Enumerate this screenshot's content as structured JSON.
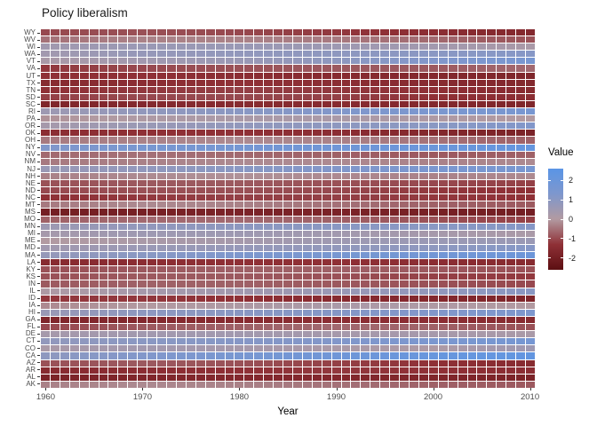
{
  "chart_data": {
    "type": "heatmap",
    "title": "Policy liberalism",
    "xlabel": "Year",
    "legend_title": "Value",
    "x_range": [
      1960,
      2010
    ],
    "x_ticks": [
      1960,
      1970,
      1980,
      1990,
      2000,
      2010
    ],
    "legend_ticks": [
      2,
      1,
      0,
      -1,
      -2
    ],
    "legend_range": [
      -2.6,
      2.6
    ],
    "grid_line_color": "#ffffff",
    "color_scale": {
      "stops": [
        {
          "value": -2.6,
          "color": "#5c0f12"
        },
        {
          "value": -1.3,
          "color": "#8f3036"
        },
        {
          "value": 0,
          "color": "#b29aa1"
        },
        {
          "value": 1.3,
          "color": "#7e97cd"
        },
        {
          "value": 2.6,
          "color": "#5a95e6"
        }
      ]
    },
    "years_sampled": [
      1960,
      1970,
      1980,
      1990,
      2000,
      2010
    ],
    "states": [
      "AK",
      "AL",
      "AR",
      "AZ",
      "CA",
      "CO",
      "CT",
      "DE",
      "FL",
      "GA",
      "HI",
      "IA",
      "ID",
      "IL",
      "IN",
      "KS",
      "KY",
      "LA",
      "MA",
      "MD",
      "ME",
      "MI",
      "MN",
      "MO",
      "MS",
      "MT",
      "NC",
      "ND",
      "NE",
      "NH",
      "NJ",
      "NM",
      "NV",
      "NY",
      "OH",
      "OK",
      "OR",
      "PA",
      "RI",
      "SC",
      "SD",
      "TN",
      "TX",
      "UT",
      "VA",
      "VT",
      "WA",
      "WI",
      "WV",
      "WY"
    ],
    "series": [
      {
        "name": "AK",
        "values": [
          -0.3,
          -0.2,
          -0.3,
          -0.5,
          -0.7,
          -0.8
        ]
      },
      {
        "name": "AL",
        "values": [
          -1.8,
          -1.7,
          -1.6,
          -1.6,
          -1.7,
          -1.8
        ]
      },
      {
        "name": "AR",
        "values": [
          -1.5,
          -1.4,
          -1.3,
          -1.2,
          -1.3,
          -1.4
        ]
      },
      {
        "name": "AZ",
        "values": [
          -0.9,
          -0.8,
          -0.9,
          -1.1,
          -1.3,
          -1.5
        ]
      },
      {
        "name": "CA",
        "values": [
          0.9,
          1.2,
          1.5,
          1.8,
          2.1,
          2.3
        ]
      },
      {
        "name": "CO",
        "values": [
          0.2,
          0.4,
          0.3,
          0.2,
          0.1,
          0.5
        ]
      },
      {
        "name": "CT",
        "values": [
          0.8,
          1.0,
          1.1,
          1.2,
          1.4,
          1.6
        ]
      },
      {
        "name": "DE",
        "values": [
          0.3,
          0.4,
          0.4,
          0.3,
          0.3,
          0.2
        ]
      },
      {
        "name": "FL",
        "values": [
          -1.0,
          -0.8,
          -0.7,
          -0.6,
          -0.7,
          -0.9
        ]
      },
      {
        "name": "GA",
        "values": [
          -1.7,
          -1.6,
          -1.5,
          -1.4,
          -1.4,
          -1.5
        ]
      },
      {
        "name": "HI",
        "values": [
          0.6,
          0.9,
          1.0,
          1.1,
          1.2,
          1.3
        ]
      },
      {
        "name": "IA",
        "values": [
          -0.2,
          0.0,
          0.1,
          0.2,
          0.1,
          0.0
        ]
      },
      {
        "name": "ID",
        "values": [
          -1.2,
          -1.2,
          -1.3,
          -1.5,
          -1.6,
          -1.7
        ]
      },
      {
        "name": "IL",
        "values": [
          0.1,
          0.3,
          0.4,
          0.6,
          0.8,
          1.0
        ]
      },
      {
        "name": "IN",
        "values": [
          -0.8,
          -0.7,
          -0.7,
          -0.8,
          -0.9,
          -1.0
        ]
      },
      {
        "name": "KS",
        "values": [
          -0.9,
          -0.8,
          -0.8,
          -0.9,
          -1.1,
          -1.2
        ]
      },
      {
        "name": "KY",
        "values": [
          -0.9,
          -0.8,
          -0.7,
          -0.7,
          -0.8,
          -0.9
        ]
      },
      {
        "name": "LA",
        "values": [
          -1.5,
          -1.4,
          -1.3,
          -1.3,
          -1.4,
          -1.5
        ]
      },
      {
        "name": "MA",
        "values": [
          0.7,
          1.0,
          1.3,
          1.5,
          1.7,
          1.9
        ]
      },
      {
        "name": "MD",
        "values": [
          0.4,
          0.6,
          0.7,
          0.8,
          0.9,
          1.1
        ]
      },
      {
        "name": "ME",
        "values": [
          0.0,
          0.2,
          0.3,
          0.5,
          0.6,
          0.6
        ]
      },
      {
        "name": "MI",
        "values": [
          0.3,
          0.5,
          0.5,
          0.4,
          0.3,
          0.2
        ]
      },
      {
        "name": "MN",
        "values": [
          0.5,
          0.8,
          0.9,
          1.0,
          1.0,
          1.1
        ]
      },
      {
        "name": "MO",
        "values": [
          -0.7,
          -0.6,
          -0.6,
          -0.7,
          -0.9,
          -1.1
        ]
      },
      {
        "name": "MS",
        "values": [
          -2.0,
          -1.9,
          -1.8,
          -1.8,
          -1.9,
          -2.0
        ]
      },
      {
        "name": "MT",
        "values": [
          -0.4,
          -0.2,
          -0.3,
          -0.5,
          -0.7,
          -0.8
        ]
      },
      {
        "name": "NC",
        "values": [
          -1.3,
          -1.2,
          -1.1,
          -1.1,
          -1.2,
          -1.3
        ]
      },
      {
        "name": "ND",
        "values": [
          -1.0,
          -0.9,
          -0.9,
          -1.0,
          -1.2,
          -1.3
        ]
      },
      {
        "name": "NE",
        "values": [
          -0.9,
          -0.8,
          -0.8,
          -0.9,
          -1.0,
          -1.1
        ]
      },
      {
        "name": "NH",
        "values": [
          -0.3,
          -0.2,
          -0.1,
          -0.2,
          -0.3,
          -0.2
        ]
      },
      {
        "name": "NJ",
        "values": [
          0.6,
          0.8,
          1.0,
          1.2,
          1.4,
          1.5
        ]
      },
      {
        "name": "NM",
        "values": [
          -0.4,
          -0.3,
          -0.2,
          -0.2,
          -0.3,
          -0.2
        ]
      },
      {
        "name": "NV",
        "values": [
          -0.6,
          -0.5,
          -0.6,
          -0.7,
          -0.8,
          -0.7
        ]
      },
      {
        "name": "NY",
        "values": [
          1.2,
          1.5,
          1.6,
          1.8,
          2.0,
          2.2
        ]
      },
      {
        "name": "OH",
        "values": [
          -0.4,
          -0.3,
          -0.2,
          -0.3,
          -0.5,
          -0.7
        ]
      },
      {
        "name": "OK",
        "values": [
          -1.4,
          -1.3,
          -1.3,
          -1.4,
          -1.6,
          -1.8
        ]
      },
      {
        "name": "OR",
        "values": [
          0.3,
          0.6,
          0.8,
          0.9,
          1.0,
          1.2
        ]
      },
      {
        "name": "PA",
        "values": [
          -0.1,
          0.1,
          0.2,
          0.2,
          0.1,
          0.0
        ]
      },
      {
        "name": "RI",
        "values": [
          0.5,
          0.8,
          1.0,
          1.2,
          1.4,
          1.5
        ]
      },
      {
        "name": "SC",
        "values": [
          -1.7,
          -1.6,
          -1.5,
          -1.5,
          -1.6,
          -1.7
        ]
      },
      {
        "name": "SD",
        "values": [
          -1.1,
          -1.0,
          -1.0,
          -1.1,
          -1.3,
          -1.4
        ]
      },
      {
        "name": "TN",
        "values": [
          -1.3,
          -1.2,
          -1.1,
          -1.2,
          -1.3,
          -1.5
        ]
      },
      {
        "name": "TX",
        "values": [
          -1.5,
          -1.4,
          -1.3,
          -1.4,
          -1.5,
          -1.6
        ]
      },
      {
        "name": "UT",
        "values": [
          -1.3,
          -1.3,
          -1.4,
          -1.5,
          -1.6,
          -1.7
        ]
      },
      {
        "name": "VA",
        "values": [
          -1.2,
          -1.0,
          -0.9,
          -0.8,
          -0.8,
          -0.6
        ]
      },
      {
        "name": "VT",
        "values": [
          0.2,
          0.4,
          0.6,
          0.9,
          1.2,
          1.5
        ]
      },
      {
        "name": "WA",
        "values": [
          0.4,
          0.7,
          0.8,
          0.9,
          1.0,
          1.1
        ]
      },
      {
        "name": "WI",
        "values": [
          0.4,
          0.6,
          0.6,
          0.5,
          0.4,
          0.2
        ]
      },
      {
        "name": "WV",
        "values": [
          -0.5,
          -0.3,
          -0.3,
          -0.4,
          -0.6,
          -0.9
        ]
      },
      {
        "name": "WY",
        "values": [
          -1.0,
          -0.9,
          -1.0,
          -1.2,
          -1.4,
          -1.6
        ]
      }
    ]
  }
}
